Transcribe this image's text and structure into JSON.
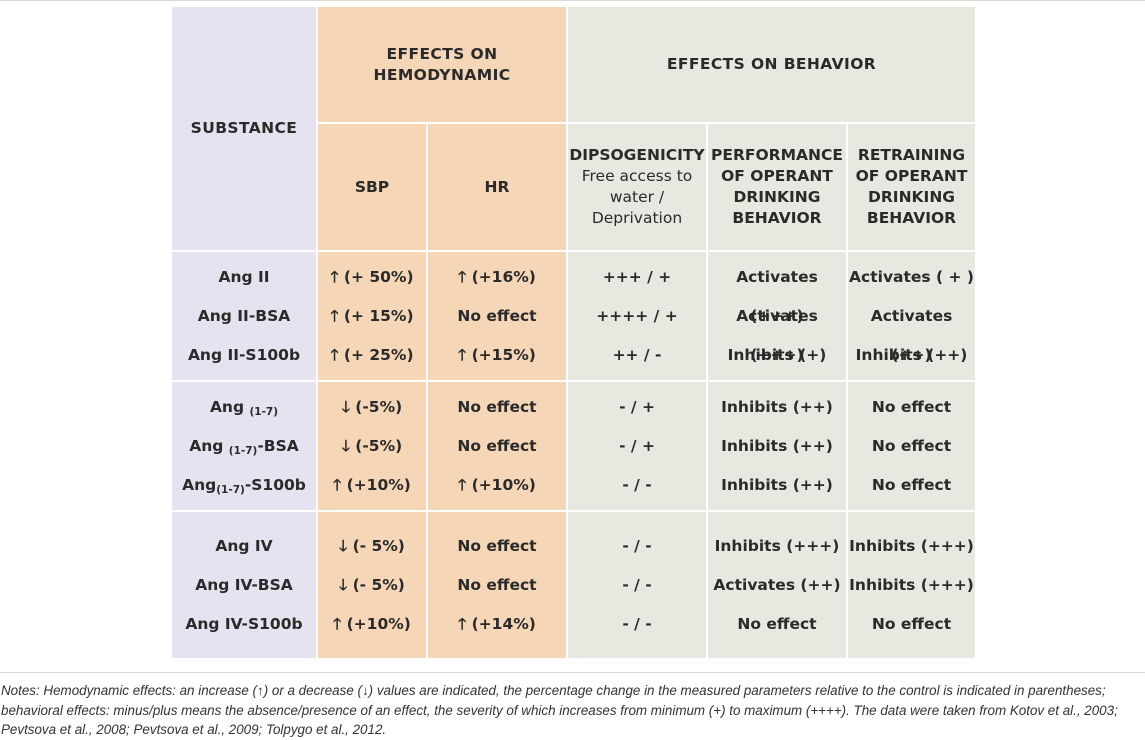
{
  "header": {
    "substance": "SUBSTANCE",
    "hemo_line1": "EFFECTS ON",
    "hemo_line2": "HEMODYNAMIC",
    "behavior": "EFFECTS ON BEHAVIOR",
    "sbp": "SBP",
    "hr": "HR",
    "dips_title": "DIPSOGENICITY",
    "dips_sub1": "Free access to",
    "dips_sub2": "water /",
    "dips_sub3": "Deprivation",
    "perf_1": "PERFORMANCE",
    "perf_2": "OF OPERANT",
    "perf_3": "DRINKING",
    "perf_4": "BEHAVIOR",
    "retr_1": "RETRAINING",
    "retr_2": "OF OPERANT",
    "retr_3": "DRINKING",
    "retr_4": "BEHAVIOR"
  },
  "rows": [
    {
      "substance": "Ang II",
      "sbp": "🡑 (+ 50%)",
      "hr": "🡑 (+16%)",
      "dips": "+++ / +",
      "perf": "Activates (+++)",
      "retr": "Activates ( + )"
    },
    {
      "substance": "Ang II-BSA",
      "sbp": "🡑 (+ 15%)",
      "hr": "No effect",
      "dips": "++++ / +",
      "perf": "Activates (+++)",
      "retr": "Activates (++)"
    },
    {
      "substance": "Ang II-S100b",
      "sbp": "🡑 (+ 25%)",
      "hr": "🡑 (+15%)",
      "dips": "++ / -",
      "perf": "Inhibits (+)",
      "retr": "Inhibits (++)"
    },
    {
      "substance_pre": "Ang ",
      "substance_sub": "(1-7)",
      "substance_post": "",
      "sbp": "🡓 (-5%)",
      "hr": "No effect",
      "dips": "- / +",
      "perf": "Inhibits (++)",
      "retr": "No effect"
    },
    {
      "substance_pre": "Ang ",
      "substance_sub": "(1-7)",
      "substance_post": "-BSA",
      "sbp": "🡓 (-5%)",
      "hr": "No effect",
      "dips": "- / +",
      "perf": "Inhibits (++)",
      "retr": "No effect"
    },
    {
      "substance_pre": "Ang",
      "substance_sub": "(1-7)",
      "substance_post": "-S100b",
      "sbp": "🡑 (+10%)",
      "hr": "🡑 (+10%)",
      "dips": "- / -",
      "perf": "Inhibits (++)",
      "retr": "No effect"
    },
    {
      "substance": "Ang IV",
      "sbp": "🡓 (- 5%)",
      "hr": "No effect",
      "dips": "- / -",
      "perf": "Inhibits (+++)",
      "retr": "Inhibits (+++)"
    },
    {
      "substance": "Ang IV-BSA",
      "sbp": "🡓 (- 5%)",
      "hr": "No effect",
      "dips": "- / -",
      "perf": "Activates (++)",
      "retr": "Inhibits (+++)"
    },
    {
      "substance": "Ang IV-S100b",
      "sbp": "🡑 (+10%)",
      "hr": "🡑 (+14%)",
      "dips": "- / -",
      "perf": "No effect",
      "retr": "No effect"
    }
  ],
  "notes": "Notes: Hemodynamic effects: an increase (↑) or a decrease (↓) values are indicated, the percentage change in the measured parameters relative to the control is indicated in parentheses; behavioral effects: minus/plus means the absence/presence of an effect, the severity of which increases from minimum (+) to maximum (++++). The data were taken from Kotov et al., 2003; Pevtsova et al., 2008; Pevtsova et al., 2009; Tolpygo et al., 2012."
}
